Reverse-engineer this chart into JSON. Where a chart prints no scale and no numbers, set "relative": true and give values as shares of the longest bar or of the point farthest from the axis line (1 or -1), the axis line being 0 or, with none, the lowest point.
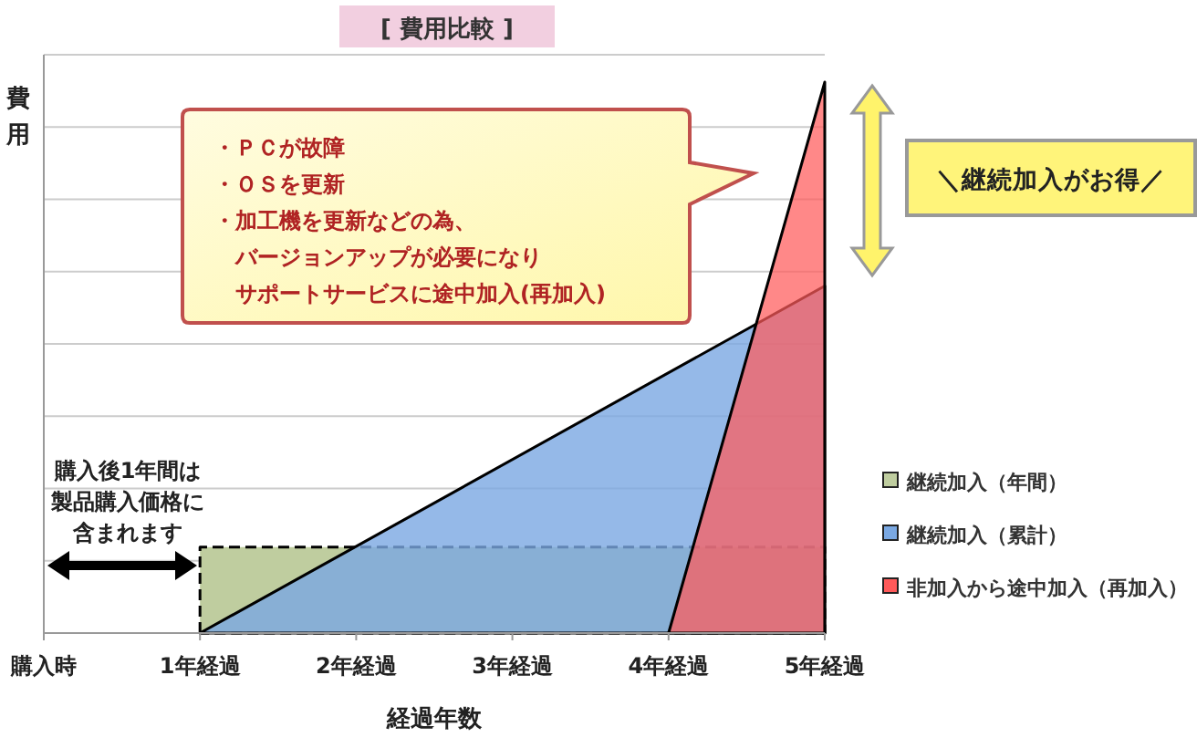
{
  "chart_data": {
    "type": "area",
    "title": "[ 費用比較 ]",
    "xlabel": "経過年数",
    "ylabel": "費用",
    "relative": true,
    "xlim": [
      0,
      5
    ],
    "xticks": [
      {
        "value": 0,
        "label": "購入時"
      },
      {
        "value": 1,
        "label": "1年経過"
      },
      {
        "value": 2,
        "label": "2年経過"
      },
      {
        "value": 3,
        "label": "3年経過"
      },
      {
        "value": 4,
        "label": "4年経過"
      },
      {
        "value": 5,
        "label": "5年経過"
      }
    ],
    "grid": "y",
    "legend": "bottom right",
    "series": [
      {
        "name": "継続加入（年間）",
        "color": "#bfcd9f",
        "x": [
          1,
          5
        ],
        "values": [
          0.156,
          0.156
        ],
        "line_style": "dashed"
      },
      {
        "name": "継続加入（累計）",
        "color": "#7aa8e2",
        "x": [
          1,
          5
        ],
        "values": [
          0,
          0.63
        ],
        "line_style": "solid"
      },
      {
        "name": "非加入から途中加入（再加入）",
        "color": "#ff5a5a",
        "x": [
          4,
          5
        ],
        "values": [
          0,
          1
        ],
        "line_style": "solid"
      }
    ],
    "annotations": [
      "・ＰＣが故障",
      "・ＯＳを更新",
      "・加工機を更新などの為、",
      "バージョンアップが必要になり",
      "サポートサービスに途中加入(再加入)",
      "購入後1年間は",
      "製品購入価格に",
      "含まれます",
      "＼継続加入がお得／"
    ]
  }
}
